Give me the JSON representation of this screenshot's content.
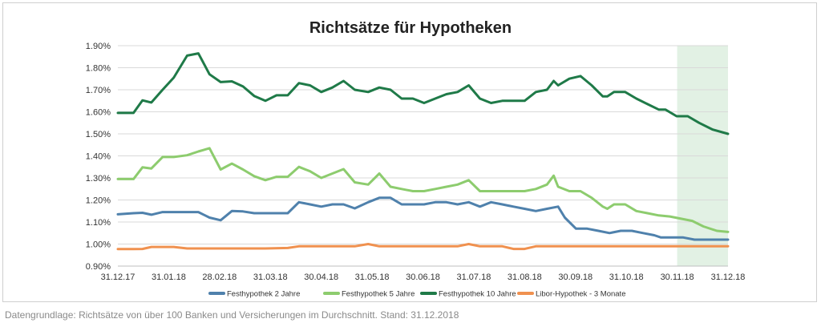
{
  "chart_data": {
    "type": "line",
    "title": "Richtsätze für Hypotheken",
    "xlabel": "",
    "ylabel": "",
    "ylim": [
      0.009,
      0.019
    ],
    "yticks": [
      "0.90%",
      "1.00%",
      "1.10%",
      "1.20%",
      "1.30%",
      "1.40%",
      "1.50%",
      "1.60%",
      "1.70%",
      "1.80%",
      "1.90%"
    ],
    "xticks": [
      "31.12.17",
      "31.01.18",
      "28.02.18",
      "31.03.18",
      "30.04.18",
      "31.05.18",
      "30.06.18",
      "31.07.18",
      "31.08.18",
      "30.09.18",
      "31.10.18",
      "30.11.18",
      "31.12.18"
    ],
    "legend_position": "bottom",
    "grid": "horizontal",
    "highlight": {
      "from": "30.11.18",
      "to": "31.12.18",
      "color": "#e2f1e4"
    },
    "series": [
      {
        "name": "Festhypothek 2 Jahre",
        "color": "#4f81ac",
        "points": [
          [
            0,
            1.135
          ],
          [
            7,
            1.14
          ],
          [
            11,
            1.142
          ],
          [
            15,
            1.133
          ],
          [
            20,
            1.145
          ],
          [
            25,
            1.145
          ],
          [
            31,
            1.145
          ],
          [
            36,
            1.145
          ],
          [
            41,
            1.12
          ],
          [
            46,
            1.108
          ],
          [
            51,
            1.15
          ],
          [
            56,
            1.148
          ],
          [
            61,
            1.14
          ],
          [
            66,
            1.14
          ],
          [
            71,
            1.14
          ],
          [
            76,
            1.14
          ],
          [
            81,
            1.19
          ],
          [
            86,
            1.18
          ],
          [
            91,
            1.17
          ],
          [
            96,
            1.18
          ],
          [
            101,
            1.18
          ],
          [
            106,
            1.162
          ],
          [
            112,
            1.19
          ],
          [
            117,
            1.21
          ],
          [
            122,
            1.21
          ],
          [
            127,
            1.18
          ],
          [
            132,
            1.18
          ],
          [
            137,
            1.18
          ],
          [
            142,
            1.19
          ],
          [
            147,
            1.19
          ],
          [
            152,
            1.18
          ],
          [
            157,
            1.19
          ],
          [
            162,
            1.17
          ],
          [
            167,
            1.19
          ],
          [
            172,
            1.18
          ],
          [
            177,
            1.17
          ],
          [
            182,
            1.16
          ],
          [
            187,
            1.15
          ],
          [
            192,
            1.16
          ],
          [
            197,
            1.17
          ],
          [
            200,
            1.12
          ],
          [
            205,
            1.07
          ],
          [
            210,
            1.07
          ],
          [
            215,
            1.06
          ],
          [
            220,
            1.05
          ],
          [
            225,
            1.06
          ],
          [
            230,
            1.06
          ],
          [
            235,
            1.05
          ],
          [
            240,
            1.04
          ],
          [
            243,
            1.03
          ],
          [
            248,
            1.03
          ],
          [
            253,
            1.03
          ],
          [
            258,
            1.02
          ],
          [
            263,
            1.02
          ],
          [
            268,
            1.02
          ],
          [
            273,
            1.02
          ]
        ]
      },
      {
        "name": "Festhypothek 5 Jahre",
        "color": "#8dcc6e",
        "points": [
          [
            0,
            1.295
          ],
          [
            7,
            1.295
          ],
          [
            11,
            1.348
          ],
          [
            15,
            1.343
          ],
          [
            20,
            1.395
          ],
          [
            25,
            1.395
          ],
          [
            31,
            1.403
          ],
          [
            36,
            1.42
          ],
          [
            41,
            1.435
          ],
          [
            46,
            1.338
          ],
          [
            51,
            1.365
          ],
          [
            56,
            1.338
          ],
          [
            61,
            1.308
          ],
          [
            66,
            1.29
          ],
          [
            71,
            1.305
          ],
          [
            76,
            1.305
          ],
          [
            81,
            1.35
          ],
          [
            86,
            1.33
          ],
          [
            91,
            1.3
          ],
          [
            96,
            1.32
          ],
          [
            101,
            1.34
          ],
          [
            106,
            1.28
          ],
          [
            112,
            1.27
          ],
          [
            117,
            1.32
          ],
          [
            122,
            1.26
          ],
          [
            127,
            1.25
          ],
          [
            132,
            1.24
          ],
          [
            137,
            1.24
          ],
          [
            142,
            1.25
          ],
          [
            147,
            1.26
          ],
          [
            152,
            1.27
          ],
          [
            157,
            1.29
          ],
          [
            162,
            1.24
          ],
          [
            167,
            1.24
          ],
          [
            172,
            1.24
          ],
          [
            177,
            1.24
          ],
          [
            182,
            1.24
          ],
          [
            187,
            1.25
          ],
          [
            192,
            1.27
          ],
          [
            195,
            1.31
          ],
          [
            197,
            1.26
          ],
          [
            202,
            1.24
          ],
          [
            207,
            1.24
          ],
          [
            212,
            1.21
          ],
          [
            217,
            1.17
          ],
          [
            219,
            1.16
          ],
          [
            222,
            1.18
          ],
          [
            227,
            1.18
          ],
          [
            232,
            1.15
          ],
          [
            237,
            1.14
          ],
          [
            242,
            1.13
          ],
          [
            247,
            1.125
          ],
          [
            252,
            1.115
          ],
          [
            257,
            1.105
          ],
          [
            262,
            1.08
          ],
          [
            268,
            1.06
          ],
          [
            273,
            1.055
          ]
        ]
      },
      {
        "name": "Festhypothek 10 Jahre",
        "color": "#1f7a48",
        "points": [
          [
            0,
            1.595
          ],
          [
            7,
            1.595
          ],
          [
            11,
            1.652
          ],
          [
            15,
            1.642
          ],
          [
            20,
            1.7
          ],
          [
            25,
            1.755
          ],
          [
            31,
            1.855
          ],
          [
            36,
            1.865
          ],
          [
            41,
            1.77
          ],
          [
            46,
            1.735
          ],
          [
            51,
            1.738
          ],
          [
            56,
            1.715
          ],
          [
            61,
            1.672
          ],
          [
            66,
            1.65
          ],
          [
            71,
            1.675
          ],
          [
            76,
            1.675
          ],
          [
            81,
            1.73
          ],
          [
            86,
            1.72
          ],
          [
            91,
            1.69
          ],
          [
            96,
            1.71
          ],
          [
            101,
            1.74
          ],
          [
            106,
            1.7
          ],
          [
            112,
            1.69
          ],
          [
            117,
            1.71
          ],
          [
            122,
            1.7
          ],
          [
            127,
            1.66
          ],
          [
            132,
            1.66
          ],
          [
            137,
            1.64
          ],
          [
            142,
            1.66
          ],
          [
            147,
            1.68
          ],
          [
            152,
            1.69
          ],
          [
            157,
            1.72
          ],
          [
            162,
            1.66
          ],
          [
            167,
            1.64
          ],
          [
            172,
            1.65
          ],
          [
            177,
            1.65
          ],
          [
            182,
            1.65
          ],
          [
            187,
            1.69
          ],
          [
            192,
            1.7
          ],
          [
            195,
            1.74
          ],
          [
            197,
            1.72
          ],
          [
            202,
            1.75
          ],
          [
            207,
            1.762
          ],
          [
            212,
            1.72
          ],
          [
            217,
            1.67
          ],
          [
            219,
            1.67
          ],
          [
            222,
            1.69
          ],
          [
            227,
            1.69
          ],
          [
            232,
            1.66
          ],
          [
            237,
            1.635
          ],
          [
            242,
            1.61
          ],
          [
            245,
            1.61
          ],
          [
            250,
            1.58
          ],
          [
            255,
            1.58
          ],
          [
            260,
            1.55
          ],
          [
            266,
            1.52
          ],
          [
            273,
            1.5
          ]
        ]
      },
      {
        "name": "Libor-Hypothek - 3 Monate",
        "color": "#f0914f",
        "points": [
          [
            0,
            0.977
          ],
          [
            7,
            0.977
          ],
          [
            11,
            0.978
          ],
          [
            15,
            0.987
          ],
          [
            20,
            0.987
          ],
          [
            25,
            0.987
          ],
          [
            31,
            0.98
          ],
          [
            36,
            0.98
          ],
          [
            46,
            0.98
          ],
          [
            56,
            0.98
          ],
          [
            66,
            0.98
          ],
          [
            76,
            0.982
          ],
          [
            81,
            0.99
          ],
          [
            91,
            0.99
          ],
          [
            101,
            0.99
          ],
          [
            106,
            0.99
          ],
          [
            112,
            1.0
          ],
          [
            117,
            0.99
          ],
          [
            127,
            0.99
          ],
          [
            137,
            0.99
          ],
          [
            147,
            0.99
          ],
          [
            152,
            0.99
          ],
          [
            157,
            1.0
          ],
          [
            162,
            0.99
          ],
          [
            172,
            0.99
          ],
          [
            177,
            0.978
          ],
          [
            182,
            0.978
          ],
          [
            187,
            0.99
          ],
          [
            197,
            0.99
          ],
          [
            207,
            0.99
          ],
          [
            217,
            0.99
          ],
          [
            227,
            0.99
          ],
          [
            237,
            0.99
          ],
          [
            247,
            0.99
          ],
          [
            257,
            0.99
          ],
          [
            267,
            0.99
          ],
          [
            273,
            0.99
          ]
        ]
      }
    ]
  },
  "footnote": "Datengrundlage: Richtsätze von über 100 Banken und Versicherungen im Durchschnitt. Stand: 31.12.2018"
}
